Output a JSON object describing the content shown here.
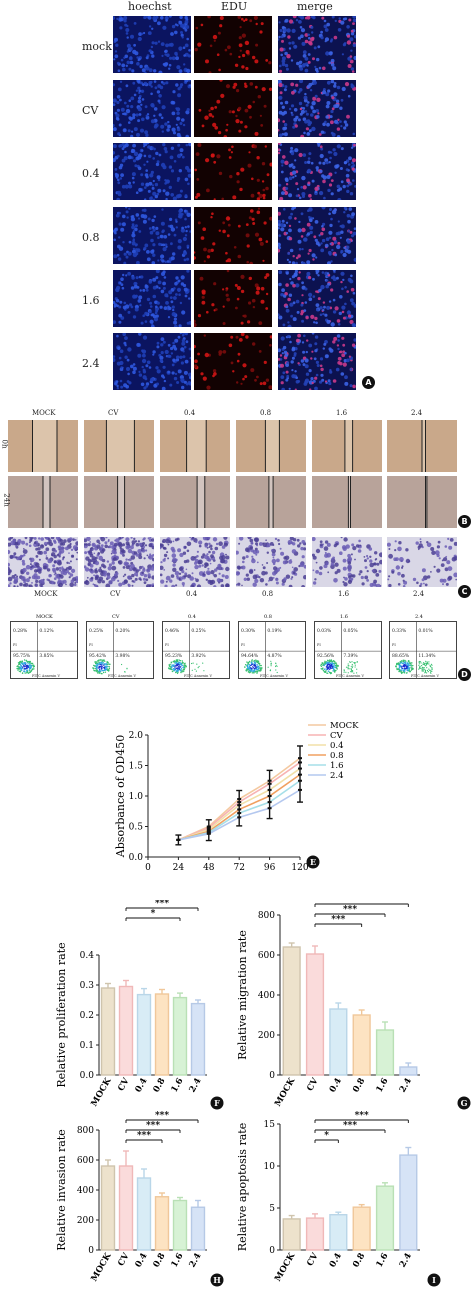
{
  "panelA": {
    "columns": [
      "hoechst",
      "EDU",
      "merge"
    ],
    "rows": [
      "mock",
      "CV",
      "0.4",
      "0.8",
      "1.6",
      "2.4"
    ],
    "badge": "A"
  },
  "panelB": {
    "columns": [
      "MOCK",
      "CV",
      "0.4",
      "0.8",
      "1.6",
      "2.4"
    ],
    "rows": [
      "0h",
      "24h"
    ],
    "badge": "B"
  },
  "panelC": {
    "columns": [
      "MOCK",
      "CV",
      "0.4",
      "0.8",
      "1.6",
      "2.4"
    ],
    "badge": "C"
  },
  "panelD": {
    "titles": [
      "MOCK",
      "CV",
      "0.4",
      "0.8",
      "1.6",
      "2.4"
    ],
    "quadrants": [
      [
        "0.28%",
        "0.12%",
        "95.75%",
        "3.85%"
      ],
      [
        "0.25%",
        "0.20%",
        "95.42%",
        "3.98%"
      ],
      [
        "0.46%",
        "0.25%",
        "95.23%",
        "3.92%"
      ],
      [
        "0.30%",
        "0.19%",
        "94.64%",
        "4.87%"
      ],
      [
        "0.03%",
        "0.05%",
        "92.56%",
        "7.39%"
      ],
      [
        "0.33%",
        "0.01%",
        "88.65%",
        "11.34%"
      ]
    ],
    "axis_y": "PI",
    "axis_x": "FITC Annexin V",
    "badge": "D"
  },
  "chart_data": [
    {
      "panel": "E",
      "type": "line",
      "ylabel": "Absorbance of OD450",
      "x": [
        24,
        48,
        72,
        96,
        120
      ],
      "xlim": [
        0,
        120
      ],
      "ylim": [
        0,
        2.0
      ],
      "yticks": [
        "0.0",
        "0.5",
        "1.0",
        "1.5",
        "2.0"
      ],
      "xticks": [
        "0",
        "24",
        "48",
        "72",
        "96",
        "120"
      ],
      "series": [
        {
          "name": "MOCK",
          "color": "#f4c9a0",
          "values": [
            0.28,
            0.5,
            0.95,
            1.25,
            1.62
          ]
        },
        {
          "name": "CV",
          "color": "#f7b3b3",
          "values": [
            0.28,
            0.48,
            0.9,
            1.2,
            1.55
          ]
        },
        {
          "name": "0.4",
          "color": "#f2e0a8",
          "values": [
            0.28,
            0.45,
            0.85,
            1.1,
            1.45
          ]
        },
        {
          "name": "0.8",
          "color": "#f0a060",
          "values": [
            0.28,
            0.42,
            0.78,
            1.0,
            1.35
          ]
        },
        {
          "name": "1.6",
          "color": "#a6dfe8",
          "values": [
            0.28,
            0.4,
            0.72,
            0.9,
            1.25
          ]
        },
        {
          "name": "2.4",
          "color": "#b4c8ef",
          "values": [
            0.28,
            0.38,
            0.65,
            0.8,
            1.1
          ]
        }
      ],
      "badge": "E"
    },
    {
      "panel": "F",
      "type": "bar",
      "ylabel": "Relative proliferation rate",
      "categories": [
        "MOCK",
        "CV",
        "0.4",
        "0.8",
        "1.6",
        "2.4"
      ],
      "values": [
        0.29,
        0.295,
        0.268,
        0.27,
        0.258,
        0.238
      ],
      "errors": [
        0.015,
        0.02,
        0.02,
        0.015,
        0.015,
        0.012
      ],
      "ylim": [
        0,
        0.4
      ],
      "yticks": [
        "0.0",
        "0.1",
        "0.2",
        "0.3",
        "0.4"
      ],
      "significance": [
        "*",
        "***"
      ],
      "badge": "F"
    },
    {
      "panel": "G",
      "type": "bar",
      "ylabel": "Relative migration rate",
      "categories": [
        "MOCK",
        "CV",
        "0.4",
        "0.8",
        "1.6",
        "2.4"
      ],
      "values": [
        640,
        605,
        330,
        300,
        225,
        40
      ],
      "errors": [
        20,
        40,
        30,
        25,
        40,
        20
      ],
      "ylim": [
        0,
        800
      ],
      "yticks": [
        "0",
        "200",
        "400",
        "600",
        "800"
      ],
      "significance": [
        "***",
        "***",
        "***"
      ],
      "badge": "G"
    },
    {
      "panel": "H",
      "type": "bar",
      "ylabel": "Relative invasion rate",
      "categories": [
        "MOCK",
        "CV",
        "0.4",
        "0.8",
        "1.6",
        "2.4"
      ],
      "values": [
        560,
        560,
        480,
        355,
        330,
        285
      ],
      "errors": [
        40,
        100,
        60,
        25,
        20,
        45
      ],
      "ylim": [
        0,
        800
      ],
      "yticks": [
        "0",
        "200",
        "400",
        "600",
        "800"
      ],
      "significance": [
        "***",
        "***",
        "***"
      ],
      "badge": "H"
    },
    {
      "panel": "I",
      "type": "bar",
      "ylabel": "Relative apoptosis rate",
      "categories": [
        "MOCK",
        "CV",
        "0.4",
        "0.8",
        "1.6",
        "2.4"
      ],
      "values": [
        3.7,
        3.8,
        4.2,
        5.1,
        7.6,
        11.3
      ],
      "errors": [
        0.4,
        0.5,
        0.3,
        0.3,
        0.4,
        0.9
      ],
      "ylim": [
        0,
        15
      ],
      "yticks": [
        "0",
        "5",
        "10",
        "15"
      ],
      "significance": [
        "*",
        "***",
        "***"
      ],
      "badge": "I"
    }
  ],
  "bar_colors": [
    "#ede2cc",
    "#fadbdb",
    "#d8ecf6",
    "#fde3c2",
    "#d7f2d5",
    "#d6e3f6"
  ],
  "bar_edges": [
    "#cfc4ad",
    "#f0b8b8",
    "#b9d6e8",
    "#f0c79a",
    "#b9e0b5",
    "#b6c9e6"
  ]
}
